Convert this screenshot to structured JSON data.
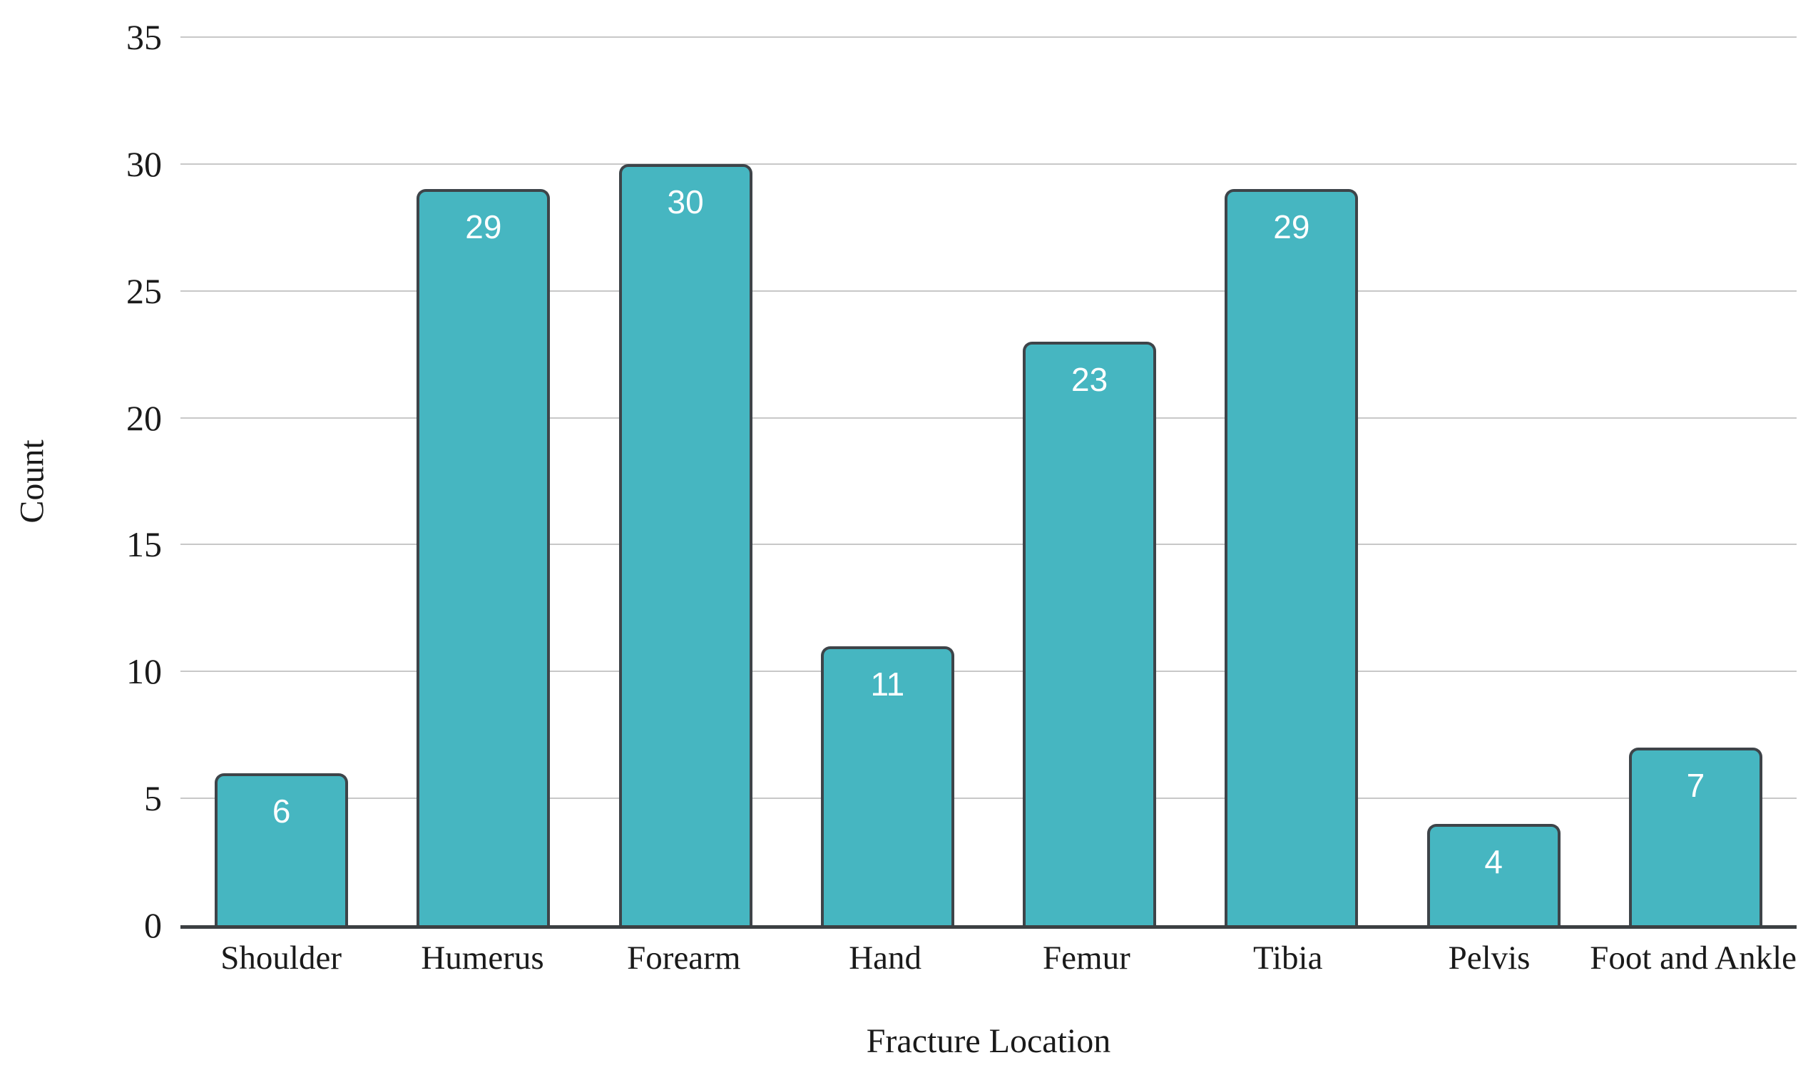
{
  "chart_data": {
    "type": "bar",
    "categories": [
      "Shoulder",
      "Humerus",
      "Forearm",
      "Hand",
      "Femur",
      "Tibia",
      "Pelvis",
      "Foot and Ankle"
    ],
    "values": [
      6,
      29,
      30,
      11,
      23,
      29,
      4,
      7
    ],
    "title": "",
    "xlabel": "Fracture Location",
    "ylabel": "Count",
    "ylim": [
      0,
      35
    ],
    "yticks": [
      0,
      5,
      10,
      15,
      20,
      25,
      30,
      35
    ],
    "grid": true,
    "legend": false,
    "bar_value_labels_inside_top": true,
    "colors": {
      "bar_fill": "#46b6c1",
      "bar_border": "#3e4449",
      "gridline": "#c8c8c8",
      "axis_line": "#3c4043",
      "label_text": "#ffffff",
      "axis_text": "#1a1a1a",
      "background": "#ffffff"
    }
  }
}
